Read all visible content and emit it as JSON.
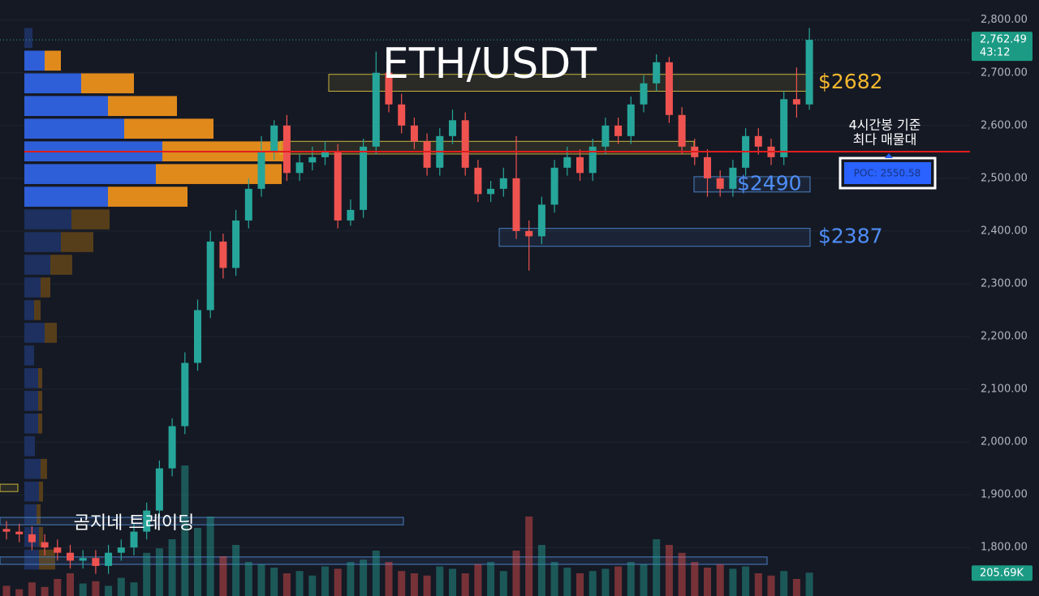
{
  "chart_data": {
    "type": "candlestick",
    "title": "ETH/USDT",
    "watermark": "곰지네 트레이딩",
    "annotation": [
      "4시간봉 기준",
      "최다 매물대"
    ],
    "ylim": [
      1708,
      2838
    ],
    "yticks": [
      {
        "value": 1800,
        "label": "1,800.00"
      },
      {
        "value": 1900,
        "label": "1,900.00"
      },
      {
        "value": 2000,
        "label": "2,000.00"
      },
      {
        "value": 2100,
        "label": "2,100.00"
      },
      {
        "value": 2200,
        "label": "2,200.00"
      },
      {
        "value": 2300,
        "label": "2,300.00"
      },
      {
        "value": 2400,
        "label": "2,400.00"
      },
      {
        "value": 2500,
        "label": "2,500.00"
      },
      {
        "value": 2600,
        "label": "2,600.00"
      },
      {
        "value": 2700,
        "label": "2,700.00"
      },
      {
        "value": 2800,
        "label": "2,800.00"
      }
    ],
    "grid": true,
    "up_color": "#26a69a",
    "down_color": "#ef5350",
    "open": [
      1835,
      1830,
      1825,
      1810,
      1800,
      1790,
      1775,
      1780,
      1765,
      1790,
      1800,
      1830,
      1870,
      1950,
      2030,
      2150,
      2250,
      2380,
      2330,
      2420,
      2480,
      2550,
      2600,
      2510,
      2530,
      2540,
      2550,
      2420,
      2440,
      2560,
      2700,
      2640,
      2600,
      2570,
      2520,
      2580,
      2610,
      2520,
      2470,
      2480,
      2500,
      2400,
      2390,
      2450,
      2520,
      2540,
      2510,
      2560,
      2600,
      2580,
      2640,
      2680,
      2720,
      2620,
      2560,
      2540,
      2500,
      2480,
      2520,
      2580,
      2560,
      2540,
      2650,
      2640
    ],
    "high": [
      1850,
      1845,
      1840,
      1825,
      1815,
      1805,
      1795,
      1795,
      1805,
      1815,
      1845,
      1885,
      1965,
      2045,
      2170,
      2270,
      2400,
      2395,
      2440,
      2500,
      2580,
      2610,
      2620,
      2545,
      2560,
      2570,
      2565,
      2460,
      2575,
      2740,
      2715,
      2660,
      2615,
      2585,
      2595,
      2630,
      2625,
      2535,
      2495,
      2520,
      2580,
      2420,
      2465,
      2535,
      2560,
      2555,
      2575,
      2615,
      2615,
      2655,
      2695,
      2735,
      2730,
      2635,
      2575,
      2555,
      2515,
      2535,
      2595,
      2595,
      2575,
      2665,
      2710,
      2785
    ],
    "low": [
      1815,
      1810,
      1795,
      1785,
      1775,
      1760,
      1760,
      1750,
      1750,
      1775,
      1785,
      1815,
      1855,
      1935,
      2015,
      2135,
      2235,
      2310,
      2315,
      2405,
      2465,
      2535,
      2495,
      2495,
      2515,
      2525,
      2405,
      2410,
      2425,
      2545,
      2625,
      2585,
      2555,
      2505,
      2505,
      2565,
      2505,
      2455,
      2455,
      2465,
      2385,
      2325,
      2375,
      2435,
      2505,
      2495,
      2495,
      2545,
      2565,
      2565,
      2625,
      2665,
      2605,
      2545,
      2525,
      2465,
      2465,
      2465,
      2505,
      2545,
      2525,
      2525,
      2615,
      2630
    ],
    "close": [
      1830,
      1825,
      1810,
      1800,
      1790,
      1775,
      1780,
      1765,
      1790,
      1800,
      1830,
      1870,
      1950,
      2030,
      2150,
      2250,
      2380,
      2330,
      2420,
      2480,
      2550,
      2600,
      2510,
      2530,
      2540,
      2550,
      2420,
      2440,
      2560,
      2700,
      2640,
      2600,
      2570,
      2520,
      2580,
      2610,
      2520,
      2470,
      2480,
      2500,
      2400,
      2390,
      2450,
      2520,
      2540,
      2510,
      2560,
      2600,
      2580,
      2640,
      2680,
      2720,
      2620,
      2560,
      2540,
      2500,
      2480,
      2520,
      2580,
      2560,
      2540,
      2650,
      2640,
      2762.49
    ],
    "volume": [
      90,
      60,
      120,
      80,
      150,
      200,
      110,
      130,
      90,
      160,
      120,
      380,
      420,
      500,
      1150,
      600,
      700,
      350,
      450,
      300,
      280,
      250,
      200,
      220,
      180,
      260,
      240,
      300,
      320,
      400,
      300,
      220,
      200,
      180,
      260,
      240,
      200,
      280,
      300,
      220,
      400,
      700,
      450,
      300,
      250,
      200,
      220,
      240,
      260,
      300,
      280,
      500,
      450,
      380,
      300,
      250,
      280,
      240,
      260,
      200,
      180,
      220,
      150,
      205.69
    ],
    "vlim": [
      0,
      1250
    ],
    "last_price": {
      "value": 2762.49,
      "label": "2,762.49"
    },
    "countdown": "43:12",
    "last_volume": {
      "value": 205.69,
      "label": "205.69K"
    },
    "poc": {
      "value": 2550.58,
      "label": "POC: 2550.58"
    },
    "zones": [
      {
        "range": [
          2665,
          2697
        ],
        "color": "#c8b43c",
        "label": "$2682"
      },
      {
        "range": [
          2546,
          2570
        ],
        "color": "#c8b43c"
      },
      {
        "range": [
          2474,
          2503
        ],
        "color": "#4a7fc0",
        "label": "$2490"
      },
      {
        "range": [
          2371,
          2405
        ],
        "color": "#4a7fc0",
        "label": "$2387"
      },
      {
        "range": [
          1843,
          1857
        ],
        "color": "#4a7fc0"
      },
      {
        "range": [
          1768,
          1782
        ],
        "color": "#4a7fc0"
      },
      {
        "range": [
          1906,
          1920
        ],
        "color": "#c8b43c"
      }
    ],
    "profile": {
      "levels": [
        2766,
        2723,
        2680,
        2637,
        2594,
        2551,
        2508,
        2465,
        2422,
        2379,
        2336,
        2293,
        2250,
        2207,
        2164,
        2121,
        2078,
        2035,
        1992,
        1949,
        1906,
        1863,
        1820,
        1777
      ],
      "xlim": [
        0,
        400
      ],
      "value_area": [
        2440,
        2745
      ],
      "series": [
        {
          "color": "#2f5fd8",
          "dim_color": "#1e3366",
          "values": [
            10,
            25,
            70,
            103,
            123,
            170,
            162,
            103,
            58,
            45,
            32,
            20,
            12,
            25,
            12,
            17,
            17,
            17,
            13,
            20,
            18,
            15,
            18,
            18
          ]
        },
        {
          "color": "#e08a1c",
          "dim_color": "#5e4219",
          "values": [
            0,
            20,
            65,
            85,
            110,
            155,
            155,
            98,
            47,
            40,
            27,
            12,
            8,
            15,
            0,
            5,
            5,
            5,
            0,
            8,
            5,
            5,
            5,
            20
          ]
        }
      ]
    }
  }
}
